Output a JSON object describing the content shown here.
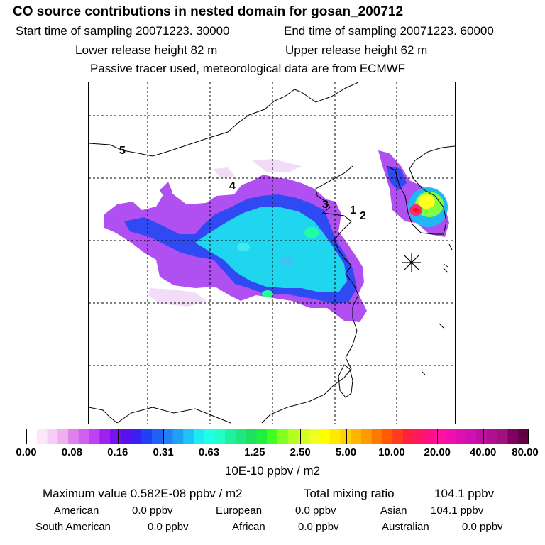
{
  "title": "CO  source contributions in nested domain for gosan_200712",
  "sampling": {
    "start": "Start time of sampling 20071223. 30000",
    "end": "End time of sampling 20071223. 60000"
  },
  "release": {
    "lower": "Lower release height   82 m",
    "upper": "Upper release height   62 m"
  },
  "note": "Passive tracer used, meteorological data are from ECMWF",
  "map_labels": [
    "5",
    "4",
    "3",
    "1",
    "2"
  ],
  "colorbar": {
    "labels": [
      "0.00",
      "0.08",
      "0.16",
      "0.31",
      "0.63",
      "1.25",
      "2.50",
      "5.00",
      "10.00",
      "20.00",
      "40.00",
      "80.00"
    ],
    "colors": [
      "#ffffff",
      "#fbe6fb",
      "#f5cdf5",
      "#efb0ef",
      "#e080ee",
      "#d060f0",
      "#c040f4",
      "#a020f0",
      "#7a10f0",
      "#5a10ee",
      "#3a20f0",
      "#2040f4",
      "#2060f4",
      "#2080f4",
      "#20a0f4",
      "#20c4f4",
      "#20e8f4",
      "#20ffe8",
      "#20ffc4",
      "#20f0a0",
      "#20e880",
      "#20e060",
      "#20ee40",
      "#40ff20",
      "#80ff20",
      "#b0ff20",
      "#d4ff20",
      "#f0ff20",
      "#ffff00",
      "#ffe800",
      "#ffd000",
      "#ffb400",
      "#ff9a00",
      "#ff7800",
      "#ff5a00",
      "#ff3a20",
      "#ff2040",
      "#ff1860",
      "#ff1080",
      "#ff10a0",
      "#f010b0",
      "#e010b0",
      "#d010b0",
      "#c010a0",
      "#b01090",
      "#a01080",
      "#800060",
      "#600040"
    ],
    "units": "10E-10 ppbv / m2"
  },
  "stats": {
    "max_label": "Maximum value  0.582E-08 ppbv / m2",
    "total_label": "Total mixing ratio",
    "total_value": "104.1 ppbv"
  },
  "regions": [
    {
      "name": "American",
      "value": "0.0 ppbv"
    },
    {
      "name": "European",
      "value": "0.0 ppbv"
    },
    {
      "name": "Asian",
      "value": "104.1 ppbv"
    },
    {
      "name": "South American",
      "value": "0.0 ppbv"
    },
    {
      "name": "African",
      "value": "0.0 ppbv"
    },
    {
      "name": "Australian",
      "value": "0.0 ppbv"
    }
  ]
}
